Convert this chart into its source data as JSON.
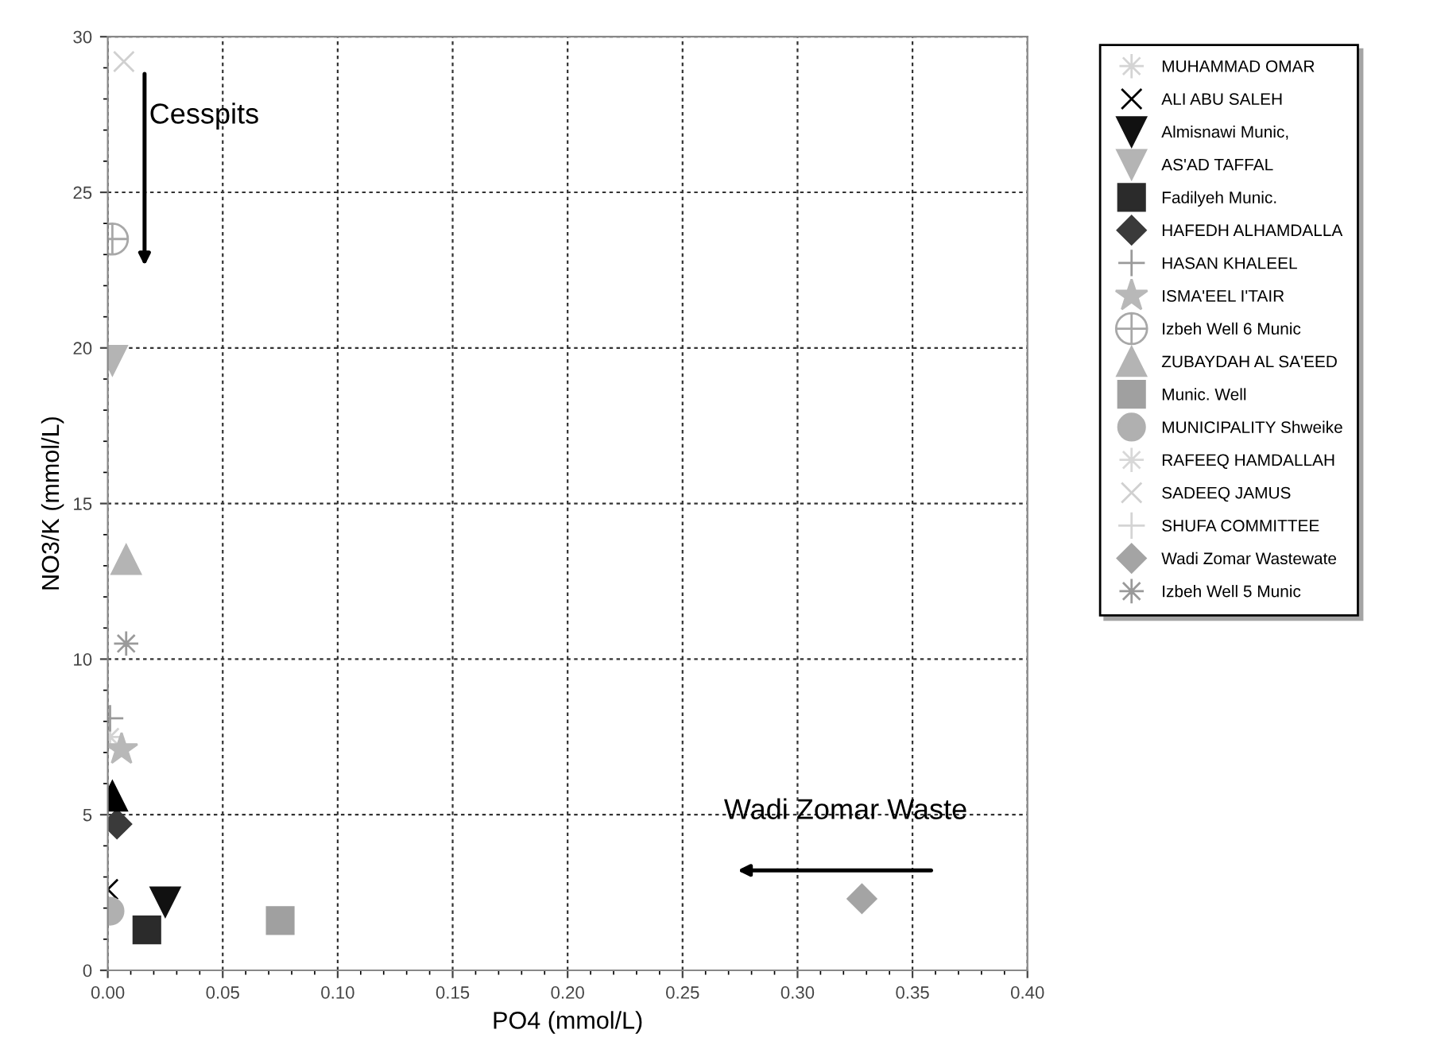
{
  "chart_data": {
    "type": "scatter",
    "xlabel": "PO4 (mmol/L)",
    "ylabel": "NO3/K (mmol/L)",
    "xlim": [
      0,
      0.4
    ],
    "ylim": [
      0,
      30
    ],
    "xticks": [
      {
        "value": 0,
        "label": "0.00"
      },
      {
        "value": 0.05,
        "label": "0.05"
      },
      {
        "value": 0.1,
        "label": "0.10"
      },
      {
        "value": 0.15,
        "label": "0.15"
      },
      {
        "value": 0.2,
        "label": "0.20"
      },
      {
        "value": 0.25,
        "label": "0.25"
      },
      {
        "value": 0.3,
        "label": "0.30"
      },
      {
        "value": 0.35,
        "label": "0.35"
      },
      {
        "value": 0.4,
        "label": "0.40"
      }
    ],
    "yticks": [
      0,
      5,
      10,
      15,
      20,
      25,
      30
    ],
    "grid": true,
    "legend": "right",
    "annotations": [
      "Cesspits",
      "Wadi Zomar Waste"
    ],
    "series": [
      {
        "name": "MUHAMMAD OMAR",
        "color": "#d4d4d4",
        "marker": "asterisk",
        "x": [
          0.001
        ],
        "values": [
          7.5
        ]
      },
      {
        "name": "ALI ABU SALEH",
        "color": "#000000",
        "marker": "x",
        "x": [
          0.0
        ],
        "values": [
          2.6
        ]
      },
      {
        "name": "Almisnawi Munic,",
        "color": "#111111",
        "marker": "triangle_down",
        "x": [
          0.025
        ],
        "values": [
          2.2
        ]
      },
      {
        "name": "AS'AD TAFFAL",
        "color": "#b4b4b4",
        "marker": "triangle_down",
        "x": [
          0.002
        ],
        "values": [
          19.6
        ]
      },
      {
        "name": "Fadilyeh Munic.",
        "color": "#2b2b2b",
        "marker": "square",
        "x": [
          0.017
        ],
        "values": [
          1.3
        ]
      },
      {
        "name": "HAFEDH ALHAMDALLA",
        "color": "#3a3a3a",
        "marker": "diamond",
        "x": [
          0.004
        ],
        "values": [
          4.7
        ]
      },
      {
        "name": "HASAN KHALEEL",
        "color": "#9a9a9a",
        "marker": "plus",
        "x": [
          0.001
        ],
        "values": [
          8.1
        ]
      },
      {
        "name": "ISMA'EEL I'TAIR",
        "color": "#b8b8b8",
        "marker": "star6",
        "x": [
          0.006
        ],
        "values": [
          7.1
        ]
      },
      {
        "name": "Izbeh Well 6 Munic",
        "color": "#a8a8a8",
        "x": [
          0.002
        ],
        "values": [
          23.5
        ]
      },
      {
        "name": "ZUBAYDAH AL SA'EED",
        "color": "#b4b4b4",
        "marker": "triangle",
        "x": [
          0.008
        ],
        "values": [
          13.2
        ]
      },
      {
        "name": "Munic. Well",
        "color": "#a0a0a0",
        "marker": "square",
        "x": [
          0.075
        ],
        "values": [
          1.6
        ]
      },
      {
        "name": "MUNICIPALITY Shweike",
        "color": "#b0b0b0",
        "marker": "circle",
        "x": [
          0.001
        ],
        "values": [
          1.9
        ]
      },
      {
        "name": "RAFEEQ HAMDALLAH",
        "color": "#d8d8d8",
        "marker": "asterisk"
      },
      {
        "name": "SADEEQ JAMUS",
        "color": "#d0d0d0",
        "marker": "x",
        "x": [
          0.007
        ],
        "values": [
          29.2
        ]
      },
      {
        "name": "SHUFA COMMITTEE",
        "color": "#d4d4d4",
        "marker": "plus"
      },
      {
        "name": "Wadi Zomar Wastewate",
        "color": "#a4a4a4",
        "marker": "diamond",
        "x": [
          0.328
        ],
        "values": [
          2.3
        ]
      },
      {
        "name": "Izbeh Well 5 Munic",
        "color": "#9a9a9a",
        "marker": "asterisk",
        "x": [
          0.008
        ],
        "values": [
          10.5
        ]
      },
      {
        "color": "#000000",
        "marker": "triangle",
        "x": [
          0.002
        ],
        "values": [
          5.6
        ]
      }
    ]
  }
}
